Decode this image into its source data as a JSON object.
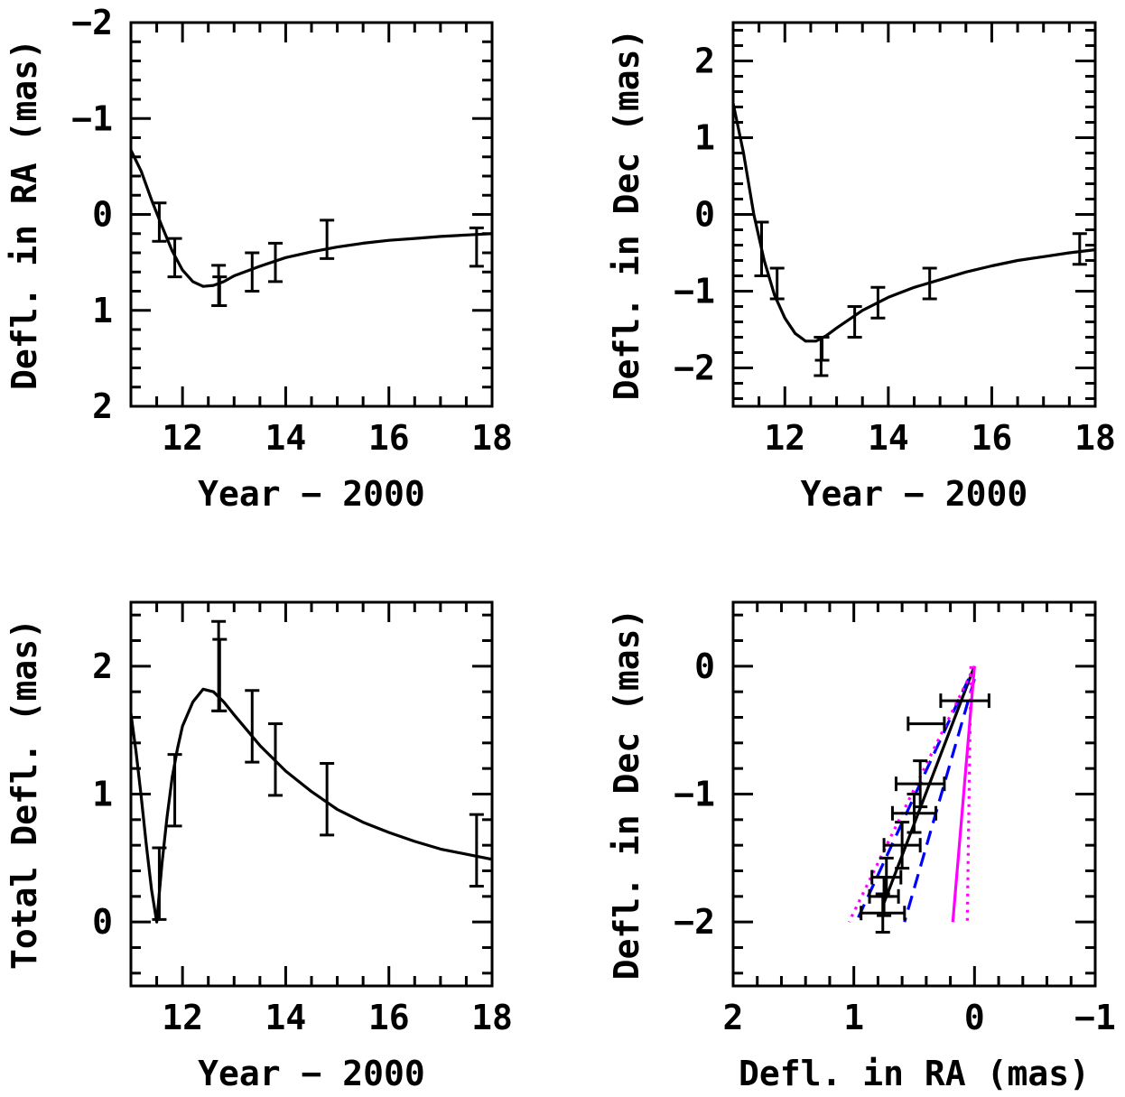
{
  "chart_data": [
    {
      "id": "ra",
      "type": "line",
      "xlabel": "Year − 2000",
      "ylabel": "Defl. in RA (mas)",
      "xlim": [
        11,
        18
      ],
      "ylim": [
        2,
        -2
      ],
      "y_inverted": true,
      "xticks": [
        "12",
        "14",
        "16",
        "18"
      ],
      "yticks": [
        "−2",
        "−1",
        "0",
        "1",
        "2"
      ],
      "model": [
        [
          11.0,
          -0.67
        ],
        [
          11.2,
          -0.45
        ],
        [
          11.4,
          -0.15
        ],
        [
          11.6,
          0.12
        ],
        [
          11.8,
          0.38
        ],
        [
          12.0,
          0.58
        ],
        [
          12.2,
          0.7
        ],
        [
          12.4,
          0.75
        ],
        [
          12.6,
          0.74
        ],
        [
          12.8,
          0.7
        ],
        [
          13.0,
          0.64
        ],
        [
          13.5,
          0.54
        ],
        [
          14.0,
          0.45
        ],
        [
          14.5,
          0.39
        ],
        [
          15.0,
          0.34
        ],
        [
          15.5,
          0.3
        ],
        [
          16.0,
          0.27
        ],
        [
          16.5,
          0.25
        ],
        [
          17.0,
          0.23
        ],
        [
          17.5,
          0.215
        ],
        [
          18.0,
          0.2
        ]
      ],
      "points": [
        {
          "x": 11.55,
          "y": 0.08,
          "err": 0.2
        },
        {
          "x": 11.85,
          "y": 0.45,
          "err": 0.2
        },
        {
          "x": 12.7,
          "y": 0.74,
          "err": 0.21
        },
        {
          "x": 12.72,
          "y": 0.8,
          "err": 0.15
        },
        {
          "x": 13.35,
          "y": 0.6,
          "err": 0.2
        },
        {
          "x": 13.8,
          "y": 0.5,
          "err": 0.2
        },
        {
          "x": 14.8,
          "y": 0.26,
          "err": 0.2
        },
        {
          "x": 17.7,
          "y": 0.34,
          "err": 0.2
        }
      ]
    },
    {
      "id": "dec",
      "type": "line",
      "xlabel": "Year − 2000",
      "ylabel": "Defl. in Dec (mas)",
      "xlim": [
        11,
        18
      ],
      "ylim": [
        -2.5,
        2.5
      ],
      "xticks": [
        "12",
        "14",
        "16",
        "18"
      ],
      "yticks": [
        "−2",
        "−1",
        "0",
        "1",
        "2"
      ],
      "model": [
        [
          11.0,
          1.45
        ],
        [
          11.2,
          0.8
        ],
        [
          11.4,
          0.0
        ],
        [
          11.6,
          -0.6
        ],
        [
          11.8,
          -1.05
        ],
        [
          12.0,
          -1.35
        ],
        [
          12.2,
          -1.55
        ],
        [
          12.4,
          -1.65
        ],
        [
          12.6,
          -1.65
        ],
        [
          12.8,
          -1.58
        ],
        [
          13.0,
          -1.48
        ],
        [
          13.5,
          -1.25
        ],
        [
          14.0,
          -1.08
        ],
        [
          14.5,
          -0.95
        ],
        [
          15.0,
          -0.85
        ],
        [
          15.5,
          -0.75
        ],
        [
          16.0,
          -0.67
        ],
        [
          16.5,
          -0.6
        ],
        [
          17.0,
          -0.55
        ],
        [
          17.5,
          -0.5
        ],
        [
          18.0,
          -0.46
        ]
      ],
      "points": [
        {
          "x": 11.55,
          "y": -0.45,
          "err": 0.35
        },
        {
          "x": 11.85,
          "y": -0.9,
          "err": 0.2
        },
        {
          "x": 12.7,
          "y": -1.85,
          "err": 0.25
        },
        {
          "x": 12.72,
          "y": -1.75,
          "err": 0.15
        },
        {
          "x": 13.35,
          "y": -1.4,
          "err": 0.2
        },
        {
          "x": 13.8,
          "y": -1.15,
          "err": 0.2
        },
        {
          "x": 14.8,
          "y": -0.9,
          "err": 0.2
        },
        {
          "x": 17.7,
          "y": -0.45,
          "err": 0.2
        }
      ]
    },
    {
      "id": "total",
      "type": "line",
      "xlabel": "Year − 2000",
      "ylabel": "Total Defl. (mas)",
      "xlim": [
        11,
        18
      ],
      "ylim": [
        -0.5,
        2.5
      ],
      "xticks": [
        "12",
        "14",
        "16",
        "18"
      ],
      "yticks": [
        "0",
        "1",
        "2"
      ],
      "model": [
        [
          11.0,
          1.63
        ],
        [
          11.1,
          1.33
        ],
        [
          11.2,
          0.98
        ],
        [
          11.3,
          0.6
        ],
        [
          11.4,
          0.25
        ],
        [
          11.5,
          0.0
        ],
        [
          11.6,
          0.45
        ],
        [
          11.7,
          0.82
        ],
        [
          11.8,
          1.13
        ],
        [
          11.9,
          1.35
        ],
        [
          12.0,
          1.53
        ],
        [
          12.2,
          1.72
        ],
        [
          12.4,
          1.82
        ],
        [
          12.6,
          1.8
        ],
        [
          12.8,
          1.72
        ],
        [
          13.0,
          1.62
        ],
        [
          13.5,
          1.38
        ],
        [
          14.0,
          1.18
        ],
        [
          14.5,
          1.02
        ],
        [
          15.0,
          0.88
        ],
        [
          15.5,
          0.78
        ],
        [
          16.0,
          0.7
        ],
        [
          16.5,
          0.63
        ],
        [
          17.0,
          0.57
        ],
        [
          17.5,
          0.53
        ],
        [
          18.0,
          0.49
        ]
      ],
      "points": [
        {
          "x": 11.55,
          "y": 0.3,
          "err": 0.28
        },
        {
          "x": 11.85,
          "y": 1.03,
          "err": 0.28
        },
        {
          "x": 12.7,
          "y": 2.0,
          "err": 0.35
        },
        {
          "x": 12.72,
          "y": 1.93,
          "err": 0.28
        },
        {
          "x": 13.35,
          "y": 1.53,
          "err": 0.28
        },
        {
          "x": 13.8,
          "y": 1.27,
          "err": 0.28
        },
        {
          "x": 14.8,
          "y": 0.96,
          "err": 0.28
        },
        {
          "x": 17.7,
          "y": 0.56,
          "err": 0.28
        }
      ]
    },
    {
      "id": "path",
      "type": "scatter",
      "xlabel": "Defl. in RA (mas)",
      "ylabel": "Defl. in Dec (mas)",
      "xlim": [
        2,
        -1
      ],
      "ylim": [
        -2.5,
        0.5
      ],
      "x_inverted": true,
      "xticks": [
        "2",
        "1",
        "0",
        "−1"
      ],
      "yticks": [
        "−2",
        "−1",
        "0"
      ],
      "points": [
        {
          "x": 0.08,
          "y": -0.27,
          "xerr": 0.2,
          "yerr": 0.0
        },
        {
          "x": 0.4,
          "y": -0.45,
          "xerr": 0.15,
          "yerr": 0.0
        },
        {
          "x": 0.45,
          "y": -0.92,
          "xerr": 0.2,
          "yerr": 0.18
        },
        {
          "x": 0.5,
          "y": -1.15,
          "xerr": 0.18,
          "yerr": 0.15
        },
        {
          "x": 0.6,
          "y": -1.4,
          "xerr": 0.15,
          "yerr": 0.18
        },
        {
          "x": 0.73,
          "y": -1.65,
          "xerr": 0.12,
          "yerr": 0.15
        },
        {
          "x": 0.75,
          "y": -1.8,
          "xerr": 0.12,
          "yerr": 0.15
        },
        {
          "x": 0.76,
          "y": -1.93,
          "xerr": 0.18,
          "yerr": 0.15
        }
      ],
      "lines": [
        {
          "style": "solid",
          "color": "#000000",
          "points": [
            [
              0.0,
              0.0
            ],
            [
              0.75,
              -1.85
            ]
          ]
        },
        {
          "style": "dashed",
          "color": "#0000ff",
          "points": [
            [
              0.05,
              -0.1
            ],
            [
              0.98,
              -2.0
            ]
          ]
        },
        {
          "style": "dashed",
          "color": "#0000ff",
          "points": [
            [
              0.0,
              -0.1
            ],
            [
              0.58,
              -2.0
            ]
          ]
        },
        {
          "style": "dotted",
          "color": "#ff00ff",
          "points": [
            [
              0.0,
              0.0
            ],
            [
              1.04,
              -2.0
            ]
          ]
        },
        {
          "style": "solid",
          "color": "#ff00ff",
          "points": [
            [
              0.0,
              0.0
            ],
            [
              0.18,
              -2.0
            ]
          ]
        },
        {
          "style": "dotted",
          "color": "#ff00ff",
          "points": [
            [
              0.03,
              0.0
            ],
            [
              0.06,
              -2.0
            ]
          ]
        }
      ]
    }
  ]
}
